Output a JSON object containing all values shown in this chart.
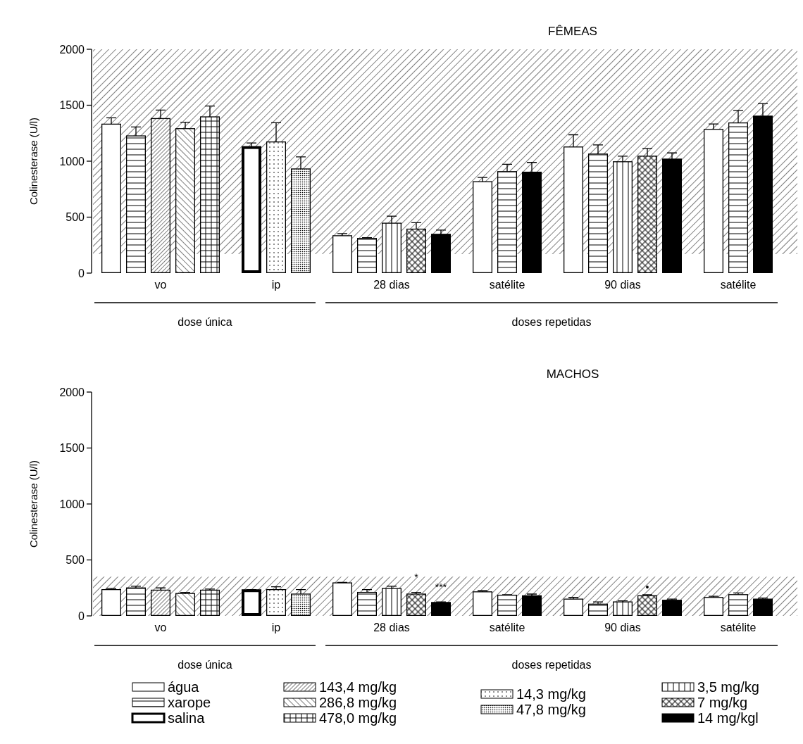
{
  "chart_data": [
    {
      "type": "bar",
      "title": "FÊMEAS",
      "ylabel": "Colinesterase (U/l)",
      "categories": [
        "vo",
        "ip",
        "28 dias",
        "satélite",
        "90 dias",
        "satélite"
      ],
      "ylim": [
        0,
        2000
      ],
      "yticks": [
        0,
        500,
        1000,
        1500,
        2000
      ],
      "legend": false,
      "bands": [
        {
          "axis": "y",
          "from": 170,
          "to": 2000
        }
      ],
      "annotations": [
        "dose única",
        "doses repetidas"
      ],
      "series": [
        {
          "color": "#000000",
          "values": [
            1331,
            null,
            334,
            817,
            1127,
            1284
          ],
          "errors": [
            [
              1331,
              1388
            ],
            null,
            [
              334,
              353
            ],
            [
              817,
              854
            ],
            [
              1127,
              1236
            ],
            [
              1284,
              1332
            ]
          ]
        },
        {
          "color": "#000000",
          "values": [
            1226,
            null,
            310,
            907,
            1064,
            1342
          ],
          "errors": [
            [
              1226,
              1306
            ],
            null,
            [
              310,
              316
            ],
            [
              907,
              973
            ],
            [
              1064,
              1146
            ],
            [
              1342,
              1454
            ]
          ]
        },
        {
          "color": "#000000",
          "values": [
            null,
            1122,
            null,
            null,
            null,
            null
          ],
          "errors": [
            null,
            [
              1122,
              1163
            ],
            null,
            null,
            null,
            null
          ]
        },
        {
          "color": "#000000",
          "values": [
            1381,
            null,
            null,
            null,
            null,
            null
          ],
          "errors": [
            [
              1381,
              1457
            ],
            null,
            null,
            null,
            null,
            null
          ]
        },
        {
          "color": "#000000",
          "values": [
            1291,
            null,
            null,
            null,
            null,
            null
          ],
          "errors": [
            [
              1291,
              1348
            ],
            null,
            null,
            null,
            null,
            null
          ]
        },
        {
          "color": "#000000",
          "values": [
            1396,
            null,
            null,
            null,
            null,
            null
          ],
          "errors": [
            [
              1396,
              1493
            ],
            null,
            null,
            null,
            null,
            null
          ]
        },
        {
          "color": "#000000",
          "values": [
            null,
            1172,
            null,
            null,
            null,
            null
          ],
          "errors": [
            null,
            [
              1172,
              1344
            ],
            null,
            null,
            null,
            null
          ]
        },
        {
          "color": "#000000",
          "values": [
            null,
            931,
            null,
            null,
            null,
            null
          ],
          "errors": [
            null,
            [
              931,
              1038
            ],
            null,
            null,
            null,
            null
          ]
        },
        {
          "color": "#000000",
          "values": [
            null,
            null,
            446,
            null,
            995,
            null
          ],
          "errors": [
            null,
            null,
            [
              446,
              509
            ],
            null,
            [
              995,
              1045
            ],
            null
          ]
        },
        {
          "color": "#000000",
          "values": [
            null,
            null,
            393,
            null,
            1045,
            null
          ],
          "errors": [
            null,
            null,
            [
              393,
              451
            ],
            null,
            [
              1045,
              1114
            ],
            null
          ]
        },
        {
          "color": "#000000",
          "values": [
            null,
            null,
            347,
            902,
            1019,
            1403
          ],
          "errors": [
            null,
            null,
            [
              347,
              385
            ],
            [
              902,
              989
            ],
            [
              1019,
              1074
            ],
            [
              1403,
              1515
            ]
          ]
        }
      ]
    },
    {
      "type": "bar",
      "title": "MACHOS",
      "ylabel": "Colinesterase (U/l)",
      "categories": [
        "vo",
        "ip",
        "28 dias",
        "satélite",
        "90 dias",
        "satélite"
      ],
      "ylim": [
        0,
        2000
      ],
      "yticks": [
        0,
        500,
        1000,
        1500,
        2000
      ],
      "legend": "bottom",
      "bands": [
        {
          "axis": "y",
          "from": 0,
          "to": 350
        }
      ],
      "annotations": [
        "dose única",
        "doses repetidas",
        "*",
        "***",
        "•"
      ],
      "series": [
        {
          "name": "água",
          "color": "#000000",
          "values": [
            235,
            null,
            295,
            215,
            150,
            165
          ],
          "errors": [
            [
              235,
              245
            ],
            null,
            [
              295,
              300
            ],
            [
              215,
              225
            ],
            [
              150,
              165
            ],
            [
              165,
              175
            ]
          ]
        },
        {
          "name": "xarope",
          "color": "#000000",
          "values": [
            250,
            null,
            210,
            185,
            105,
            190
          ],
          "errors": [
            [
              250,
              265
            ],
            null,
            [
              210,
              235
            ],
            [
              185,
              190
            ],
            [
              105,
              125
            ],
            [
              190,
              205
            ]
          ]
        },
        {
          "name": "salina",
          "color": "#000000",
          "values": [
            null,
            225,
            null,
            null,
            null,
            null
          ],
          "errors": [
            null,
            [
              225,
              235
            ],
            null,
            null,
            null,
            null
          ]
        },
        {
          "name": "143,4 mg/kg",
          "color": "#000000",
          "values": [
            230,
            null,
            null,
            null,
            null,
            null
          ],
          "errors": [
            [
              230,
              250
            ],
            null,
            null,
            null,
            null,
            null
          ]
        },
        {
          "name": "286,8 mg/kg",
          "color": "#000000",
          "values": [
            200,
            null,
            null,
            null,
            null,
            null
          ],
          "errors": [
            [
              200,
              210
            ],
            null,
            null,
            null,
            null,
            null
          ]
        },
        {
          "name": "478,0 mg/kg",
          "color": "#000000",
          "values": [
            230,
            null,
            null,
            null,
            null,
            null
          ],
          "errors": [
            [
              230,
              240
            ],
            null,
            null,
            null,
            null,
            null
          ]
        },
        {
          "name": "14,3 mg/kg",
          "color": "#000000",
          "values": [
            null,
            235,
            null,
            null,
            null,
            null
          ],
          "errors": [
            null,
            [
              235,
              260
            ],
            null,
            null,
            null,
            null
          ]
        },
        {
          "name": "47,8 mg/kg",
          "color": "#000000",
          "values": [
            null,
            195,
            null,
            null,
            null,
            null
          ],
          "errors": [
            null,
            [
              195,
              235
            ],
            null,
            null,
            null,
            null
          ]
        },
        {
          "name": "3,5 mg/kg",
          "color": "#000000",
          "values": [
            null,
            null,
            245,
            null,
            125,
            null
          ],
          "errors": [
            null,
            null,
            [
              245,
              265
            ],
            null,
            [
              125,
              135
            ],
            null
          ]
        },
        {
          "name": "7 mg/kg",
          "color": "#000000",
          "values": [
            null,
            null,
            195,
            null,
            180,
            null
          ],
          "errors": [
            null,
            null,
            [
              195,
              210
            ],
            null,
            [
              180,
              190
            ],
            null
          ]
        },
        {
          "name": "14 mg/kgl",
          "color": "#000000",
          "values": [
            null,
            null,
            120,
            180,
            140,
            150
          ],
          "errors": [
            null,
            null,
            [
              120,
              125
            ],
            [
              180,
              195
            ],
            [
              140,
              150
            ],
            [
              150,
              160
            ]
          ]
        }
      ]
    }
  ]
}
